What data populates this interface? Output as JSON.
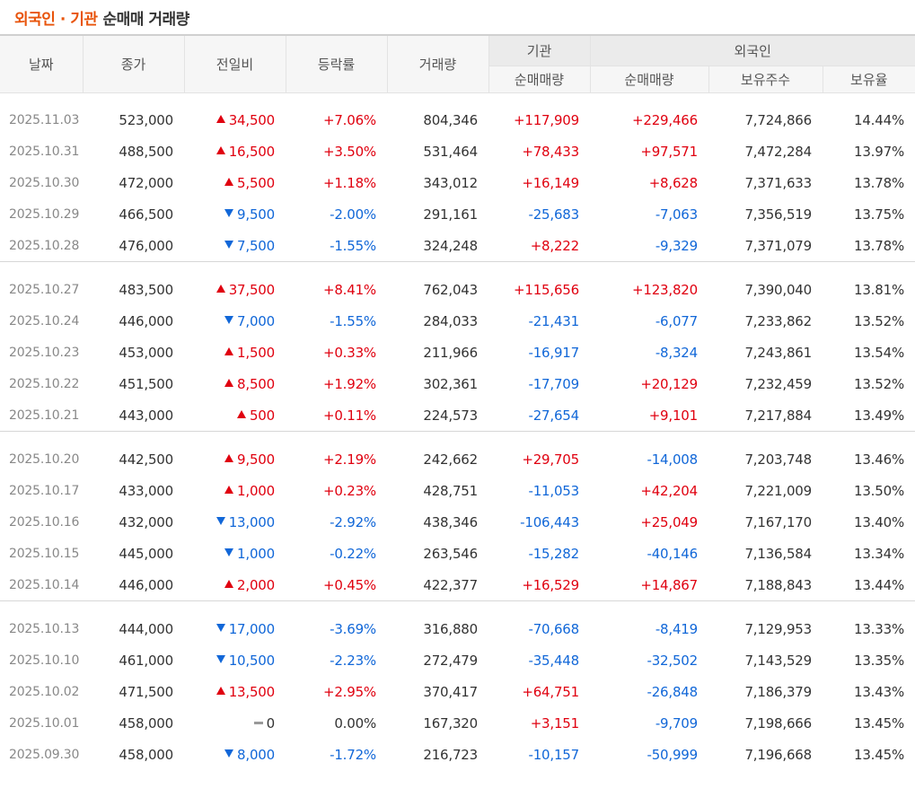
{
  "title": {
    "accent": "외국인 · 기관",
    "rest": "순매매 거래량"
  },
  "headers": {
    "date": "날짜",
    "close": "종가",
    "change": "전일비",
    "rate": "등락률",
    "volume": "거래량",
    "institution": "기관",
    "foreign": "외국인",
    "inst_net": "순매매량",
    "frgn_net": "순매매량",
    "frgn_holdings": "보유주수",
    "frgn_ratio": "보유율"
  },
  "groups": [
    [
      {
        "date": "2025.11.03",
        "close": "523,000",
        "dir": "up",
        "change": "34,500",
        "rate": "+7.06%",
        "volume": "804,346",
        "inst": "+117,909",
        "frgn": "+229,466",
        "hold": "7,724,866",
        "ratio": "14.44%"
      },
      {
        "date": "2025.10.31",
        "close": "488,500",
        "dir": "up",
        "change": "16,500",
        "rate": "+3.50%",
        "volume": "531,464",
        "inst": "+78,433",
        "frgn": "+97,571",
        "hold": "7,472,284",
        "ratio": "13.97%"
      },
      {
        "date": "2025.10.30",
        "close": "472,000",
        "dir": "up",
        "change": "5,500",
        "rate": "+1.18%",
        "volume": "343,012",
        "inst": "+16,149",
        "frgn": "+8,628",
        "hold": "7,371,633",
        "ratio": "13.78%"
      },
      {
        "date": "2025.10.29",
        "close": "466,500",
        "dir": "down",
        "change": "9,500",
        "rate": "-2.00%",
        "volume": "291,161",
        "inst": "-25,683",
        "frgn": "-7,063",
        "hold": "7,356,519",
        "ratio": "13.75%"
      },
      {
        "date": "2025.10.28",
        "close": "476,000",
        "dir": "down",
        "change": "7,500",
        "rate": "-1.55%",
        "volume": "324,248",
        "inst": "+8,222",
        "frgn": "-9,329",
        "hold": "7,371,079",
        "ratio": "13.78%"
      }
    ],
    [
      {
        "date": "2025.10.27",
        "close": "483,500",
        "dir": "up",
        "change": "37,500",
        "rate": "+8.41%",
        "volume": "762,043",
        "inst": "+115,656",
        "frgn": "+123,820",
        "hold": "7,390,040",
        "ratio": "13.81%"
      },
      {
        "date": "2025.10.24",
        "close": "446,000",
        "dir": "down",
        "change": "7,000",
        "rate": "-1.55%",
        "volume": "284,033",
        "inst": "-21,431",
        "frgn": "-6,077",
        "hold": "7,233,862",
        "ratio": "13.52%"
      },
      {
        "date": "2025.10.23",
        "close": "453,000",
        "dir": "up",
        "change": "1,500",
        "rate": "+0.33%",
        "volume": "211,966",
        "inst": "-16,917",
        "frgn": "-8,324",
        "hold": "7,243,861",
        "ratio": "13.54%"
      },
      {
        "date": "2025.10.22",
        "close": "451,500",
        "dir": "up",
        "change": "8,500",
        "rate": "+1.92%",
        "volume": "302,361",
        "inst": "-17,709",
        "frgn": "+20,129",
        "hold": "7,232,459",
        "ratio": "13.52%"
      },
      {
        "date": "2025.10.21",
        "close": "443,000",
        "dir": "up",
        "change": "500",
        "rate": "+0.11%",
        "volume": "224,573",
        "inst": "-27,654",
        "frgn": "+9,101",
        "hold": "7,217,884",
        "ratio": "13.49%"
      }
    ],
    [
      {
        "date": "2025.10.20",
        "close": "442,500",
        "dir": "up",
        "change": "9,500",
        "rate": "+2.19%",
        "volume": "242,662",
        "inst": "+29,705",
        "frgn": "-14,008",
        "hold": "7,203,748",
        "ratio": "13.46%"
      },
      {
        "date": "2025.10.17",
        "close": "433,000",
        "dir": "up",
        "change": "1,000",
        "rate": "+0.23%",
        "volume": "428,751",
        "inst": "-11,053",
        "frgn": "+42,204",
        "hold": "7,221,009",
        "ratio": "13.50%"
      },
      {
        "date": "2025.10.16",
        "close": "432,000",
        "dir": "down",
        "change": "13,000",
        "rate": "-2.92%",
        "volume": "438,346",
        "inst": "-106,443",
        "frgn": "+25,049",
        "hold": "7,167,170",
        "ratio": "13.40%"
      },
      {
        "date": "2025.10.15",
        "close": "445,000",
        "dir": "down",
        "change": "1,000",
        "rate": "-0.22%",
        "volume": "263,546",
        "inst": "-15,282",
        "frgn": "-40,146",
        "hold": "7,136,584",
        "ratio": "13.34%"
      },
      {
        "date": "2025.10.14",
        "close": "446,000",
        "dir": "up",
        "change": "2,000",
        "rate": "+0.45%",
        "volume": "422,377",
        "inst": "+16,529",
        "frgn": "+14,867",
        "hold": "7,188,843",
        "ratio": "13.44%"
      }
    ],
    [
      {
        "date": "2025.10.13",
        "close": "444,000",
        "dir": "down",
        "change": "17,000",
        "rate": "-3.69%",
        "volume": "316,880",
        "inst": "-70,668",
        "frgn": "-8,419",
        "hold": "7,129,953",
        "ratio": "13.33%"
      },
      {
        "date": "2025.10.10",
        "close": "461,000",
        "dir": "down",
        "change": "10,500",
        "rate": "-2.23%",
        "volume": "272,479",
        "inst": "-35,448",
        "frgn": "-32,502",
        "hold": "7,143,529",
        "ratio": "13.35%"
      },
      {
        "date": "2025.10.02",
        "close": "471,500",
        "dir": "up",
        "change": "13,500",
        "rate": "+2.95%",
        "volume": "370,417",
        "inst": "+64,751",
        "frgn": "-26,848",
        "hold": "7,186,379",
        "ratio": "13.43%"
      },
      {
        "date": "2025.10.01",
        "close": "458,000",
        "dir": "flat",
        "change": "0",
        "rate": "0.00%",
        "volume": "167,320",
        "inst": "+3,151",
        "frgn": "-9,709",
        "hold": "7,198,666",
        "ratio": "13.45%"
      },
      {
        "date": "2025.09.30",
        "close": "458,000",
        "dir": "down",
        "change": "8,000",
        "rate": "-1.72%",
        "volume": "216,723",
        "inst": "-10,157",
        "frgn": "-50,999",
        "hold": "7,196,668",
        "ratio": "13.45%"
      }
    ]
  ],
  "colors": {
    "up": "#e0000f",
    "down": "#1167d8",
    "accent": "#e8540b"
  }
}
